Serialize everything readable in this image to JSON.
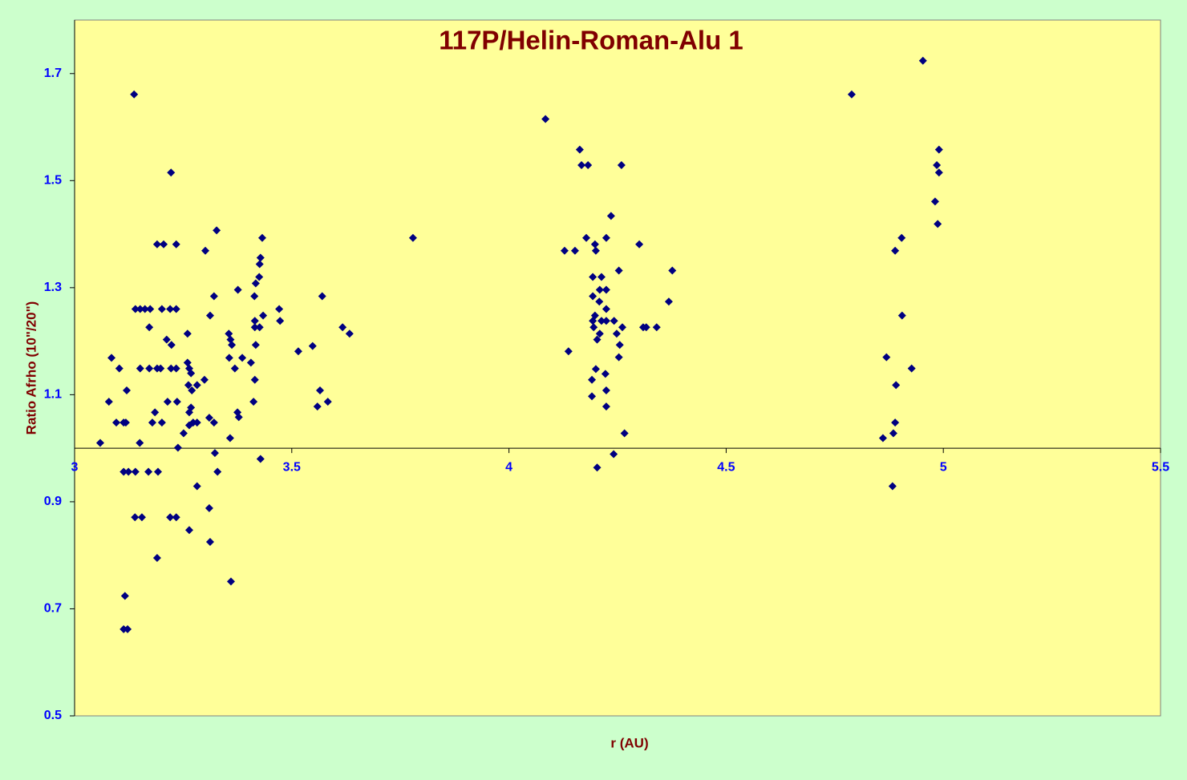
{
  "chart_data": {
    "type": "scatter",
    "title": "117P/Helin-Roman-Alu  1",
    "x_label": "r (AU)",
    "y_label": "Ratio Afrho (10\"/20\")",
    "color": "#000080",
    "xlim": [
      3,
      5.5
    ],
    "xticks": [
      3,
      3.5,
      4,
      4.5,
      5,
      5.5
    ],
    "ylim": [
      0.5,
      1.8
    ],
    "yticks": [
      0.5,
      0.7,
      0.9,
      1.1,
      1.3,
      1.5,
      1.7
    ],
    "x_axis_crosses": 1.0,
    "x": [
      3.059,
      3.079,
      3.085,
      3.096,
      3.103,
      3.113,
      3.118,
      3.12,
      3.113,
      3.124,
      3.14,
      3.116,
      3.113,
      3.122,
      3.137,
      3.14,
      3.151,
      3.162,
      3.174,
      3.151,
      3.172,
      3.15,
      3.139,
      3.155,
      3.172,
      3.179,
      3.185,
      3.17,
      3.192,
      3.19,
      3.205,
      3.19,
      3.198,
      3.201,
      3.19,
      3.201,
      3.22,
      3.234,
      3.222,
      3.212,
      3.223,
      3.222,
      3.234,
      3.214,
      3.236,
      3.234,
      3.22,
      3.234,
      3.238,
      3.251,
      3.26,
      3.26,
      3.264,
      3.268,
      3.262,
      3.27,
      3.268,
      3.264,
      3.273,
      3.264,
      3.282,
      3.282,
      3.264,
      3.282,
      3.301,
      3.299,
      3.312,
      3.321,
      3.327,
      3.31,
      3.321,
      3.323,
      3.329,
      3.31,
      3.312,
      3.355,
      3.359,
      3.362,
      3.356,
      3.369,
      3.358,
      3.36,
      3.375,
      3.378,
      3.376,
      3.386,
      3.406,
      3.412,
      3.415,
      3.414,
      3.417,
      3.417,
      3.415,
      3.415,
      3.426,
      3.425,
      3.426,
      3.428,
      3.434,
      3.432,
      3.428,
      3.471,
      3.473,
      3.515,
      3.548,
      3.559,
      3.565,
      3.57,
      3.583,
      3.617,
      3.633,
      3.779,
      4.084,
      4.128,
      4.137,
      4.152,
      4.163,
      4.167,
      4.182,
      4.178,
      4.193,
      4.193,
      4.193,
      4.195,
      4.191,
      4.191,
      4.198,
      4.2,
      4.198,
      4.2,
      4.203,
      4.208,
      4.209,
      4.213,
      4.209,
      4.203,
      4.213,
      4.224,
      4.224,
      4.224,
      4.224,
      4.222,
      4.224,
      4.224,
      4.235,
      4.242,
      4.241,
      4.248,
      4.253,
      4.255,
      4.253,
      4.259,
      4.261,
      4.266,
      4.3,
      4.309,
      4.316,
      4.34,
      4.368,
      4.376,
      4.789,
      4.861,
      4.869,
      4.885,
      4.889,
      4.891,
      4.889,
      4.883,
      4.904,
      4.905,
      4.927,
      4.953,
      4.981,
      4.985,
      4.99,
      4.99,
      4.987
    ],
    "values": [
      1.01,
      1.087,
      1.169,
      1.048,
      1.149,
      1.048,
      1.048,
      1.108,
      0.956,
      0.956,
      0.956,
      0.724,
      0.662,
      0.662,
      1.661,
      1.26,
      1.26,
      1.26,
      1.26,
      1.149,
      1.149,
      1.01,
      0.871,
      0.871,
      1.226,
      1.048,
      1.067,
      0.956,
      0.956,
      1.381,
      1.381,
      1.149,
      1.149,
      1.048,
      0.795,
      1.26,
      1.26,
      1.26,
      1.515,
      1.203,
      1.193,
      1.149,
      1.149,
      1.087,
      1.087,
      1.381,
      0.871,
      0.871,
      1.001,
      1.028,
      1.214,
      1.16,
      1.149,
      1.14,
      1.118,
      1.108,
      1.076,
      1.067,
      1.048,
      1.043,
      1.048,
      1.118,
      0.847,
      0.929,
      1.369,
      1.128,
      1.248,
      1.284,
      1.407,
      1.057,
      1.048,
      0.991,
      0.956,
      0.888,
      0.825,
      1.214,
      1.203,
      1.193,
      1.169,
      1.149,
      1.019,
      0.751,
      1.067,
      1.058,
      1.296,
      1.169,
      1.16,
      1.087,
      1.128,
      1.284,
      1.308,
      1.193,
      1.238,
      1.226,
      1.226,
      1.32,
      1.344,
      1.356,
      1.248,
      1.393,
      0.98,
      1.26,
      1.238,
      1.181,
      1.191,
      1.078,
      1.108,
      1.284,
      1.087,
      1.226,
      1.214,
      1.393,
      1.615,
      1.369,
      1.181,
      1.369,
      1.558,
      1.529,
      1.529,
      1.393,
      1.32,
      1.284,
      1.238,
      1.226,
      1.128,
      1.097,
      1.381,
      1.369,
      1.248,
      1.148,
      0.964,
      1.274,
      1.296,
      1.32,
      1.214,
      1.203,
      1.238,
      1.238,
      1.26,
      1.296,
      1.393,
      1.139,
      1.108,
      1.078,
      1.434,
      1.238,
      0.989,
      1.214,
      1.332,
      1.193,
      1.17,
      1.529,
      1.226,
      1.028,
      1.381,
      1.226,
      1.226,
      1.226,
      1.274,
      1.332,
      1.661,
      1.019,
      1.17,
      1.028,
      1.048,
      1.118,
      1.369,
      0.929,
      1.393,
      1.248,
      1.149,
      1.724,
      1.461,
      1.529,
      1.558,
      1.515,
      1.419
    ]
  }
}
